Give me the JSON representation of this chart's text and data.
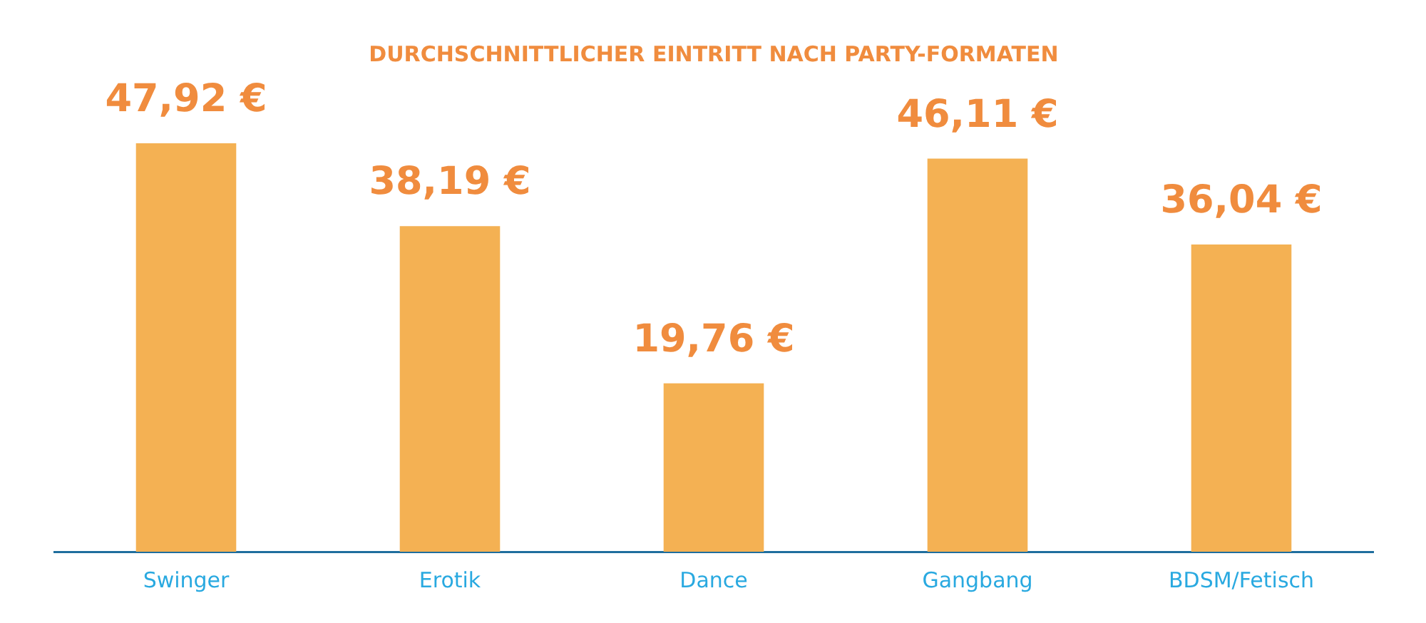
{
  "chart_data": {
    "type": "bar",
    "title": "DURCHSCHNITTLICHER EINTRITT NACH PARTY-FORMATEN",
    "categories": [
      "Swinger",
      "Erotik",
      "Dance",
      "Gangbang",
      "BDSM/Fetisch"
    ],
    "values": [
      47.92,
      38.19,
      19.76,
      46.11,
      36.04
    ],
    "value_labels": [
      "47,92 €",
      "38,19 €",
      "19,76 €",
      "46,11 €",
      "36,04 €"
    ],
    "color": "#f4b153",
    "tick_labels": "x",
    "grid": false,
    "legend": false
  }
}
